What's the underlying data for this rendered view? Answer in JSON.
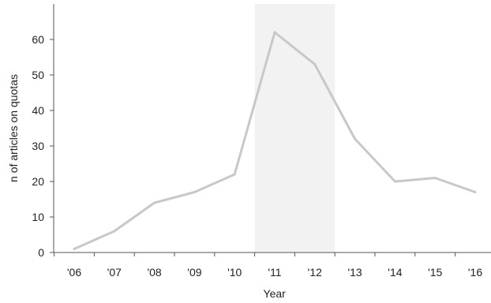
{
  "chart_data": {
    "type": "line",
    "title": "",
    "xlabel": "Year",
    "ylabel": "n of articles on quotas",
    "categories": [
      "'06",
      "'07",
      "'08",
      "'09",
      "'10",
      "'11",
      "'12",
      "'13",
      "'14",
      "'15",
      "'16"
    ],
    "series": [
      {
        "values": [
          1,
          6,
          14,
          17,
          22,
          62,
          53,
          32,
          20,
          21,
          17
        ]
      }
    ],
    "ylim": [
      0,
      70
    ],
    "yticks": [
      0,
      10,
      20,
      30,
      40,
      50,
      60
    ],
    "grid": false,
    "highlight": {
      "from": "'11",
      "to": "'12"
    },
    "colors": {
      "line": "#c8c8c8",
      "highlight": "#f2f2f2",
      "axis": "#555555"
    }
  }
}
